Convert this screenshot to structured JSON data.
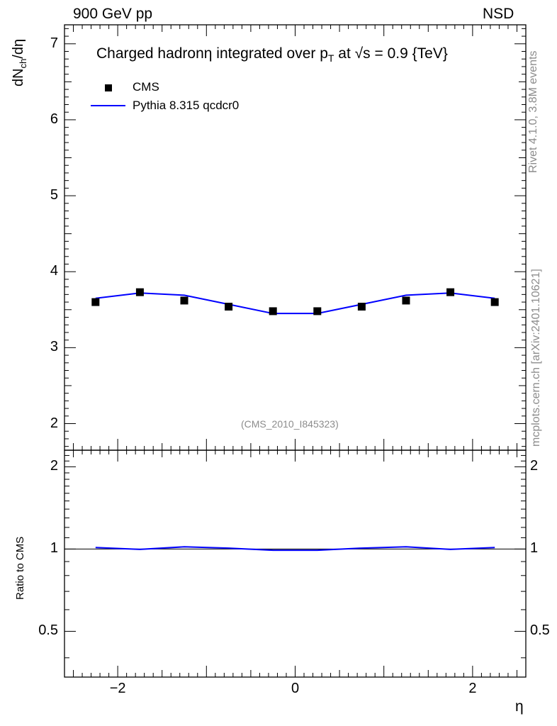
{
  "header": {
    "left_label": "900 GeV pp",
    "right_label": "NSD"
  },
  "side": {
    "rivet": "Rivet 4.1.0,  3.8M events",
    "mcplots": "mcplots.cern.ch [arXiv:2401.10621]"
  },
  "chart_data": {
    "type": "scatter",
    "title_main": "Charged hadronη integrated over p",
    "title_sub": "T",
    "title_tail": " at √s = 0.9 {TeV}",
    "watermark": "(CMS_2010_I845323)",
    "xlabel": "η",
    "ylabel_main": "dN",
    "ylabel_sub": "ch",
    "ylabel_tail": "/dη",
    "ratio_ylabel": "Ratio to CMS",
    "xlim": [
      -2.6,
      2.6
    ],
    "ylim": [
      1.65,
      7.25
    ],
    "ratio_ylim": [
      0.34,
      2.3
    ],
    "x_ticks": [
      "−2",
      "0",
      "2"
    ],
    "x_tick_values": [
      -2,
      0,
      2
    ],
    "y_ticks": [
      "2",
      "3",
      "4",
      "5",
      "6",
      "7"
    ],
    "y_tick_values": [
      2,
      3,
      4,
      5,
      6,
      7
    ],
    "ratio_y_ticks": [
      "0.5",
      "1",
      "2"
    ],
    "ratio_y_tick_values": [
      0.5,
      1,
      2
    ],
    "legend": [
      {
        "name": "CMS",
        "color": "#000000",
        "marker": "square"
      },
      {
        "name": "Pythia 8.315 qcdcr0",
        "color": "#0000ff",
        "marker": "line"
      }
    ],
    "series": [
      {
        "name": "CMS",
        "x": [
          -2.25,
          -1.75,
          -1.25,
          -0.75,
          -0.25,
          0.25,
          0.75,
          1.25,
          1.75,
          2.25
        ],
        "values": [
          3.6,
          3.73,
          3.62,
          3.54,
          3.48,
          3.48,
          3.54,
          3.62,
          3.73,
          3.6
        ]
      },
      {
        "name": "Pythia 8.315 qcdcr0",
        "x": [
          -2.25,
          -1.75,
          -1.25,
          -0.75,
          -0.25,
          0.25,
          0.75,
          1.25,
          1.75,
          2.25
        ],
        "values": [
          3.65,
          3.72,
          3.69,
          3.57,
          3.45,
          3.45,
          3.57,
          3.69,
          3.72,
          3.65
        ]
      }
    ],
    "ratio": {
      "x": [
        -2.25,
        -1.75,
        -1.25,
        -0.75,
        -0.25,
        0.25,
        0.75,
        1.25,
        1.75,
        2.25
      ],
      "values": [
        1.013,
        0.997,
        1.019,
        1.008,
        0.99,
        0.99,
        1.008,
        1.019,
        0.997,
        1.013
      ]
    }
  }
}
